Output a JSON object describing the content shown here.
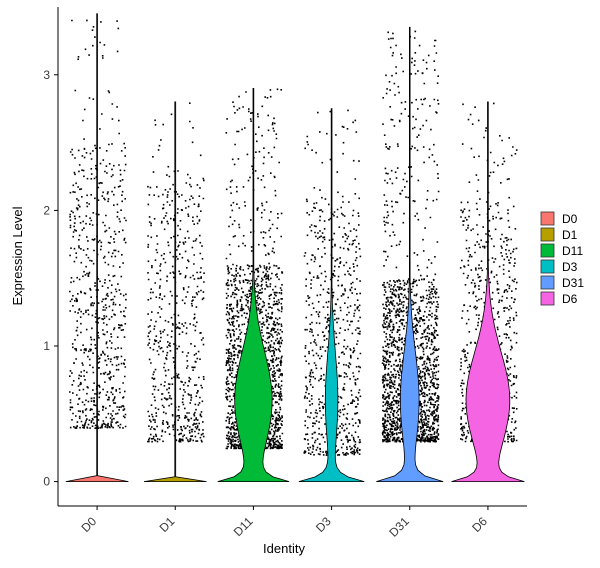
{
  "chart_data": {
    "type": "violin",
    "xlabel": "Identity",
    "ylabel": "Expression Level",
    "ylim": [
      -0.18,
      3.5
    ],
    "yticks": [
      0,
      1,
      2,
      3
    ],
    "grid": false,
    "legend_position": "right",
    "categories": [
      "D0",
      "D1",
      "D11",
      "D3",
      "D31",
      "D6"
    ],
    "series": [
      {
        "name": "D0",
        "color": "#F8766D",
        "max": 3.45,
        "zero_density": 0.03,
        "upper_density": 0.0,
        "points_low": 0.4,
        "points_high": 2.5,
        "points_n": 700
      },
      {
        "name": "D1",
        "color": "#B79F00",
        "max": 2.8,
        "zero_density": 0.03,
        "upper_density": 0.0,
        "points_low": 0.3,
        "points_high": 2.3,
        "points_n": 600
      },
      {
        "name": "D11",
        "color": "#00BA38",
        "max": 2.9,
        "zero_density": 0.55,
        "upper_density": 0.06,
        "points_low": 0.25,
        "points_high": 1.6,
        "points_n": 1800
      },
      {
        "name": "D3",
        "color": "#00BFC4",
        "max": 2.75,
        "zero_density": 0.35,
        "upper_density": 0.02,
        "points_low": 0.2,
        "points_high": 2.1,
        "points_n": 700
      },
      {
        "name": "D31",
        "color": "#619CFF",
        "max": 3.35,
        "zero_density": 0.5,
        "upper_density": 0.03,
        "points_low": 0.3,
        "points_high": 1.5,
        "points_n": 1800
      },
      {
        "name": "D6",
        "color": "#F564E3",
        "max": 2.8,
        "zero_density": 0.55,
        "upper_density": 0.07,
        "points_low": 0.3,
        "points_high": 2.1,
        "points_n": 700
      }
    ]
  }
}
